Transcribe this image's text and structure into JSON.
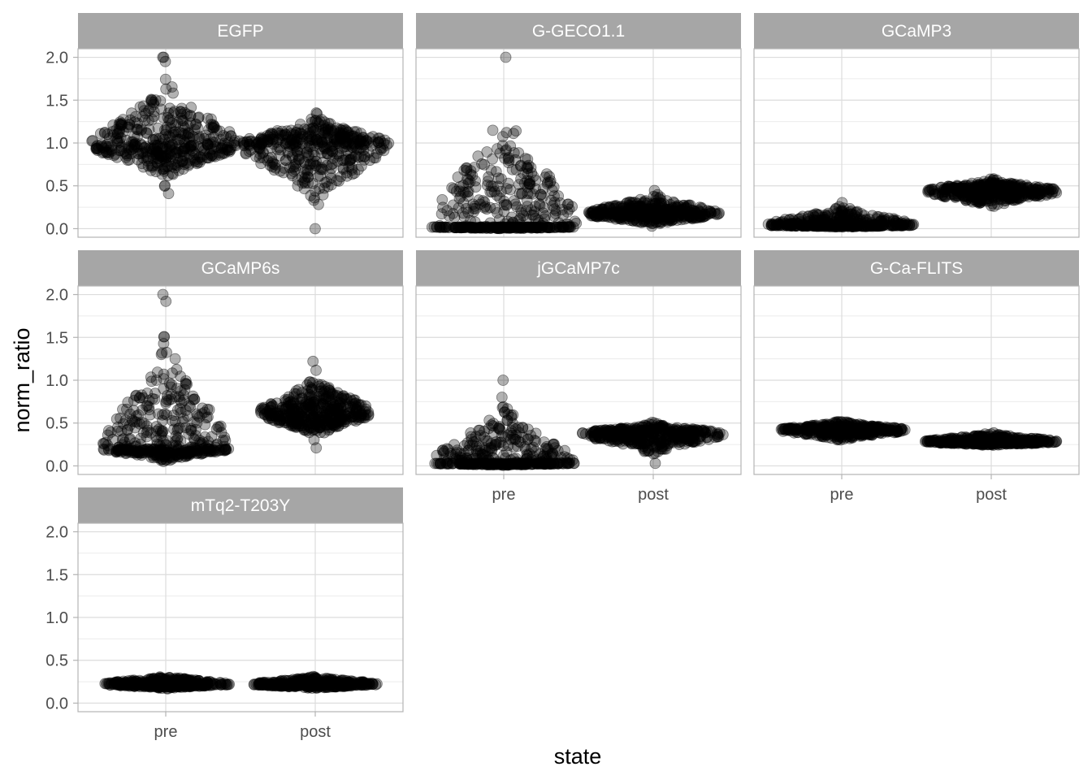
{
  "chart_data": {
    "type": "scatter",
    "style": "faceted beeswarm",
    "xlabel": "state",
    "ylabel": "norm_ratio",
    "categories": [
      "pre",
      "post"
    ],
    "yticks": [
      "0.0",
      "0.5",
      "1.0",
      "1.5",
      "2.0"
    ],
    "ylim": [
      -0.1,
      2.1
    ],
    "grid": true,
    "point_color": "#000000",
    "point_opacity": 0.3,
    "strip_color": "#a6a6a6",
    "facets": [
      {
        "name": "EGFP",
        "pre": {
          "center": 0.98,
          "min": 0.41,
          "max": 2.0,
          "spread": 1.0,
          "outliers": [
            2.0,
            2.0,
            0.41,
            0.62
          ]
        },
        "post": {
          "center": 0.98,
          "min": 0.0,
          "max": 1.45,
          "spread": 1.0,
          "outliers": [
            0.0,
            0.36,
            0.44
          ]
        }
      },
      {
        "name": "G-GECO1.1",
        "pre": {
          "center": 0.02,
          "min": 0.0,
          "max": 2.0,
          "spread": 1.0,
          "outliers": [
            2.0,
            0.32
          ]
        },
        "post": {
          "center": 0.17,
          "min": -0.01,
          "max": 0.5,
          "spread": 0.9,
          "outliers": []
        }
      },
      {
        "name": "GCaMP3",
        "pre": {
          "center": 0.04,
          "min": 0.02,
          "max": 0.35,
          "spread": 1.0,
          "outliers": []
        },
        "post": {
          "center": 0.44,
          "min": 0.17,
          "max": 0.64,
          "spread": 0.9,
          "outliers": []
        }
      },
      {
        "name": "GCaMP6s",
        "pre": {
          "center": 0.2,
          "min": 0.0,
          "max": 2.0,
          "spread": 0.85,
          "outliers": [
            2.0,
            1.07,
            0.75
          ]
        },
        "post": {
          "center": 0.62,
          "min": 0.21,
          "max": 1.22,
          "spread": 0.75,
          "outliers": [
            1.22,
            0.21
          ]
        }
      },
      {
        "name": "jGCaMP7c",
        "pre": {
          "center": 0.03,
          "min": 0.0,
          "max": 1.0,
          "spread": 0.95,
          "outliers": [
            1.0
          ]
        },
        "post": {
          "center": 0.38,
          "min": 0.03,
          "max": 0.54,
          "spread": 0.95,
          "outliers": [
            0.03
          ]
        }
      },
      {
        "name": "G-Ca-FLITS",
        "pre": {
          "center": 0.42,
          "min": 0.25,
          "max": 0.56,
          "spread": 0.85,
          "outliers": []
        },
        "post": {
          "center": 0.28,
          "min": 0.22,
          "max": 0.43,
          "spread": 0.9,
          "outliers": []
        }
      },
      {
        "name": "mTq2-T203Y",
        "pre": {
          "center": 0.22,
          "min": 0.15,
          "max": 0.36,
          "spread": 0.85,
          "outliers": []
        },
        "post": {
          "center": 0.22,
          "min": 0.15,
          "max": 0.35,
          "spread": 0.85,
          "outliers": []
        }
      }
    ]
  }
}
